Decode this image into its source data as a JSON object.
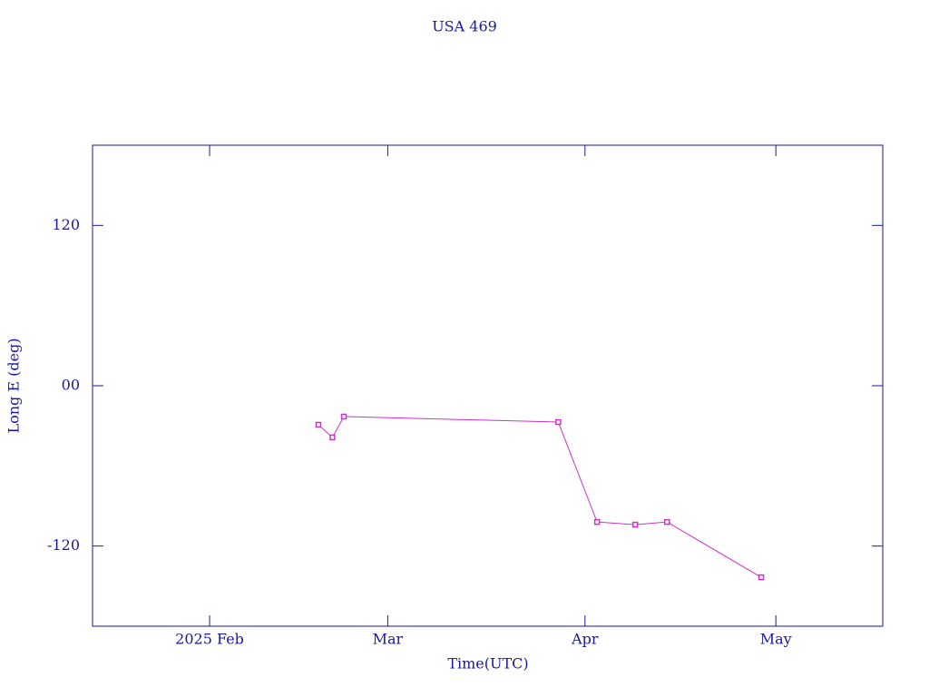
{
  "chart_data": {
    "type": "line",
    "title": "USA 469",
    "xlabel": "Time(UTC)",
    "ylabel": "Long E (deg)",
    "x": [
      49.1,
      51.3,
      53.1,
      86.8,
      92.9,
      98.9,
      103.9,
      118.7
    ],
    "series": [
      {
        "name": "USA 469",
        "color": "#cc33cc",
        "values": [
          -29.2,
          -38.7,
          -23.1,
          -27.2,
          -102,
          -104,
          -102,
          -143.4
        ]
      }
    ],
    "xlim": [
      13.6,
      137.8
    ],
    "xticks": [
      {
        "value": 32,
        "label": "2025 Feb"
      },
      {
        "value": 60,
        "label": "Mar"
      },
      {
        "value": 91,
        "label": "Apr"
      },
      {
        "value": 121,
        "label": "May"
      }
    ],
    "ylim": [
      -180,
      180
    ],
    "yticks": [
      -120,
      {
        "value": 0,
        "label": "00"
      },
      120
    ],
    "axis_color": "#1a1a99"
  }
}
